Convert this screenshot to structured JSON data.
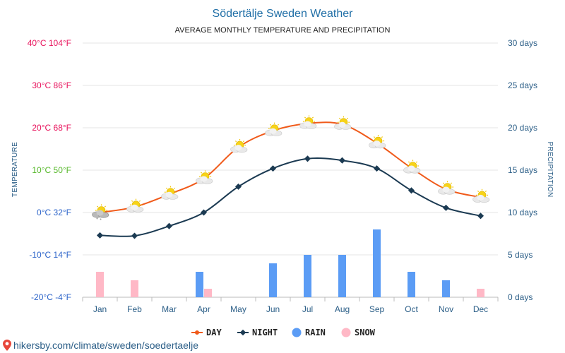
{
  "chart_data": {
    "type": "line",
    "title": "Södertälje Sweden Weather",
    "subtitle": "AVERAGE MONTHLY TEMPERATURE AND PRECIPITATION",
    "categories": [
      "Jan",
      "Feb",
      "Mar",
      "Apr",
      "May",
      "Jun",
      "Jul",
      "Aug",
      "Sep",
      "Oct",
      "Nov",
      "Dec"
    ],
    "series": [
      {
        "name": "DAY",
        "color": "#f05a1a",
        "axis": "temperature",
        "values": [
          0,
          1.3,
          4.3,
          8,
          15.4,
          19.3,
          21,
          20.8,
          16.4,
          10.5,
          5.5,
          3.6
        ]
      },
      {
        "name": "NIGHT",
        "color": "#1b3a52",
        "axis": "temperature",
        "values": [
          -5.4,
          -5.5,
          -3.2,
          0,
          6.1,
          10.4,
          12.7,
          12.3,
          10.4,
          5.2,
          1.1,
          -0.8
        ]
      },
      {
        "name": "RAIN",
        "color": "#5b9cf5",
        "axis": "precipitation",
        "values": [
          0,
          0,
          0,
          3,
          0,
          4,
          5,
          5,
          8,
          3,
          2,
          0
        ]
      },
      {
        "name": "SNOW",
        "color": "#ffb8c6",
        "axis": "precipitation",
        "values": [
          3,
          2,
          0,
          1,
          0,
          0,
          0,
          0,
          0,
          0,
          0,
          1
        ]
      }
    ],
    "ylabel_left": "TEMPERATURE",
    "ylabel_right": "PRECIPITATION",
    "ylim_left": [
      -20,
      40
    ],
    "ylim_right": [
      0,
      30
    ],
    "yticks_left": [
      {
        "value": 40,
        "label": "40°C 104°F",
        "color": "#e8115b"
      },
      {
        "value": 30,
        "label": "30°C 86°F",
        "color": "#e8115b"
      },
      {
        "value": 20,
        "label": "20°C 68°F",
        "color": "#e8115b"
      },
      {
        "value": 10,
        "label": "10°C 50°F",
        "color": "#56b82a"
      },
      {
        "value": 0,
        "label": "0°C 32°F",
        "color": "#2b63c9"
      },
      {
        "value": -10,
        "label": "-10°C 14°F",
        "color": "#2b63c9"
      },
      {
        "value": -20,
        "label": "-20°C -4°F",
        "color": "#2b63c9"
      }
    ],
    "yticks_right": [
      {
        "value": 30,
        "label": "30 days"
      },
      {
        "value": 25,
        "label": "25 days"
      },
      {
        "value": 20,
        "label": "20 days"
      },
      {
        "value": 15,
        "label": "15 days"
      },
      {
        "value": 10,
        "label": "10 days"
      },
      {
        "value": 5,
        "label": "5 days"
      },
      {
        "value": 0,
        "label": "0 days"
      }
    ],
    "weather_icons": [
      "snow-cloud-sun",
      "cloud-sun",
      "cloud-sun",
      "cloud-sun",
      "cloud-sun",
      "cloud-sun",
      "cloud-sun",
      "cloud-sun",
      "cloud-sun",
      "cloud-sun",
      "cloud-sun",
      "cloud-sun"
    ],
    "legend": [
      {
        "label": "DAY",
        "type": "line",
        "color": "#f05a1a"
      },
      {
        "label": "NIGHT",
        "type": "line",
        "color": "#1b3a52"
      },
      {
        "label": "RAIN",
        "type": "dot",
        "color": "#5b9cf5"
      },
      {
        "label": "SNOW",
        "type": "dot",
        "color": "#ffb8c6"
      }
    ]
  },
  "footer": {
    "icon": "map-pin-icon",
    "text": "hikersby.com/climate/sweden/soedertaelje"
  }
}
